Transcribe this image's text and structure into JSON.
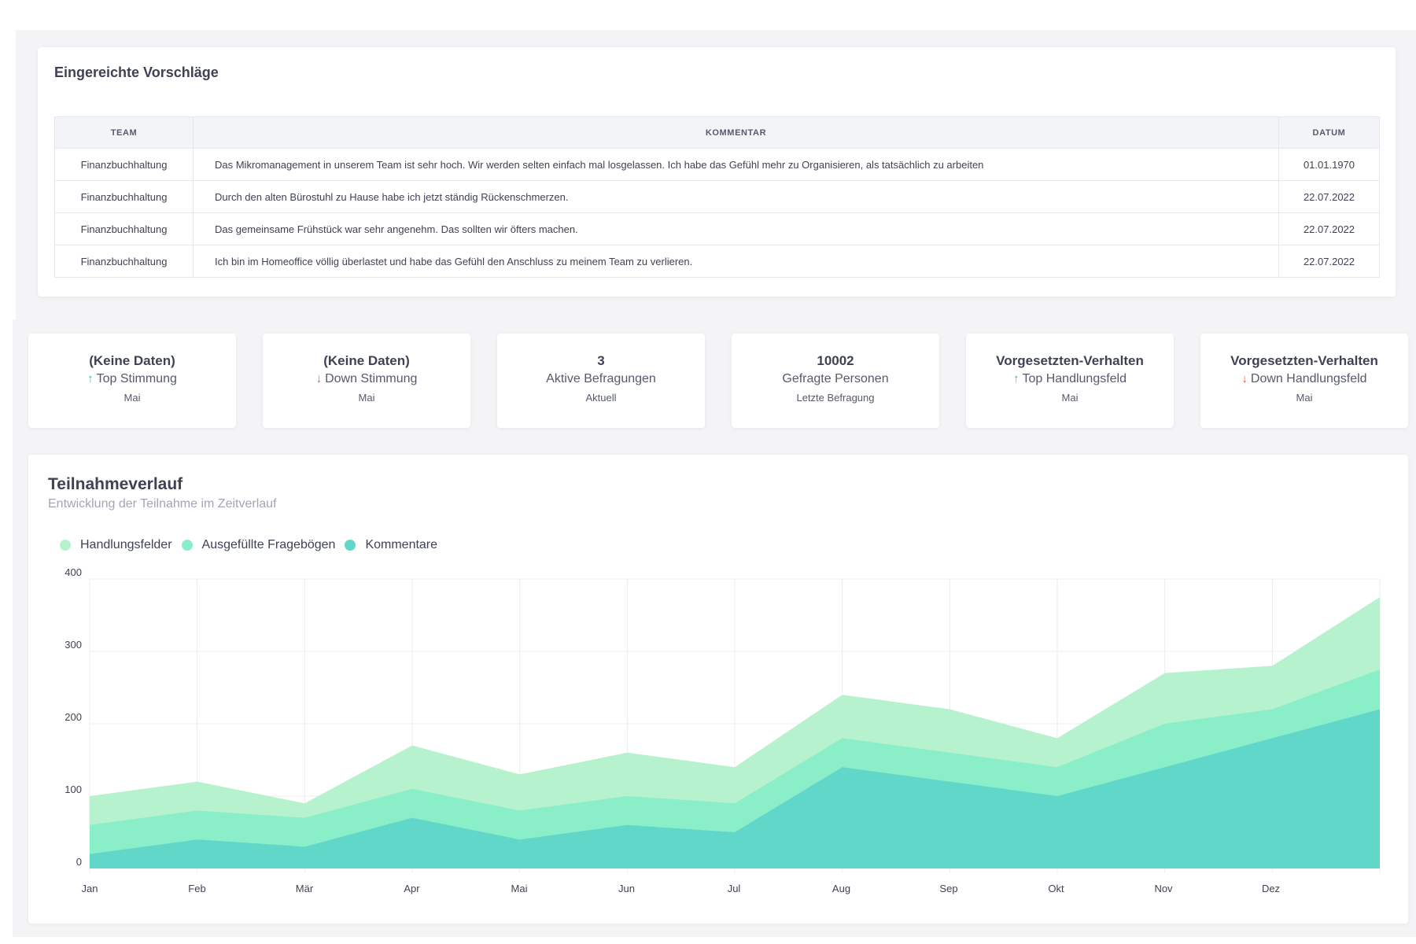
{
  "suggestions": {
    "title": "Eingereichte Vorschläge",
    "columns": {
      "team": "TEAM",
      "comment": "KOMMENTAR",
      "date": "DATUM"
    },
    "rows": [
      {
        "team": "Finanzbuchhaltung",
        "comment": "Das Mikromanagement in unserem Team ist sehr hoch. Wir werden selten einfach mal losgelassen. Ich habe das Gefühl mehr zu Organisieren, als tatsächlich zu arbeiten",
        "date": "01.01.1970"
      },
      {
        "team": "Finanzbuchhaltung",
        "comment": "Durch den alten Bürostuhl zu Hause habe ich jetzt ständig Rückenschmerzen.",
        "date": "22.07.2022"
      },
      {
        "team": "Finanzbuchhaltung",
        "comment": "Das gemeinsame Frühstück war sehr angenehm. Das sollten wir öfters machen.",
        "date": "22.07.2022"
      },
      {
        "team": "Finanzbuchhaltung",
        "comment": "Ich bin im Homeoffice völlig überlastet und habe das Gefühl den Anschluss zu meinem Team zu verlieren.",
        "date": "22.07.2022"
      }
    ]
  },
  "kpis": [
    {
      "value": "(Keine Daten)",
      "label": "Top Stimmung",
      "sub": "Mai",
      "arrow": "up"
    },
    {
      "value": "(Keine Daten)",
      "label": "Down Stimmung",
      "sub": "Mai",
      "arrow": "down"
    },
    {
      "value": "3",
      "label": "Aktive Befragungen",
      "sub": "Aktuell",
      "arrow": ""
    },
    {
      "value": "10002",
      "label": "Gefragte Personen",
      "sub": "Letzte Befragung",
      "arrow": ""
    },
    {
      "value": "Vorgesetzten-Verhalten",
      "label": "Top Handlungsfeld",
      "sub": "Mai",
      "arrow": "up"
    },
    {
      "value": "Vorgesetzten-Verhalten",
      "label": "Down Handlungsfeld",
      "sub": "Mai",
      "arrow": "down"
    }
  ],
  "icons": {
    "up": "arrow-up-icon",
    "down": "arrow-down-icon"
  },
  "colors": {
    "up": "#34c38f",
    "down": "#e1554f"
  },
  "chart": {
    "title": "Teilnahmeverlauf",
    "subtitle": "Entwicklung der Teilnahme im Zeitverlauf"
  },
  "chart_data": {
    "type": "area",
    "stacked": false,
    "categories": [
      "Jan",
      "Feb",
      "Mär",
      "Apr",
      "Mai",
      "Jun",
      "Jul",
      "Aug",
      "Sep",
      "Okt",
      "Nov",
      "Dez",
      ""
    ],
    "x_tick_labels": [
      "Jan",
      "Feb",
      "Mär",
      "Apr",
      "Mai",
      "Jun",
      "Jul",
      "Aug",
      "Sep",
      "Okt",
      "Nov",
      "Dez"
    ],
    "series": [
      {
        "name": "Handlungsfelder",
        "color": "#b5f2cd",
        "values": [
          100,
          120,
          90,
          170,
          130,
          160,
          140,
          240,
          220,
          180,
          270,
          280,
          375
        ]
      },
      {
        "name": "Ausgefüllte Fragebögen",
        "color": "#8aeec9",
        "values": [
          60,
          80,
          70,
          110,
          80,
          100,
          90,
          180,
          160,
          140,
          200,
          220,
          275
        ]
      },
      {
        "name": "Kommentare",
        "color": "#60d7c8",
        "values": [
          20,
          40,
          30,
          70,
          40,
          60,
          50,
          140,
          120,
          100,
          140,
          180,
          220
        ]
      }
    ],
    "ylim": [
      0,
      400
    ],
    "y_ticks": [
      0,
      100,
      200,
      300,
      400
    ],
    "grid": true,
    "legend": "top-left"
  }
}
